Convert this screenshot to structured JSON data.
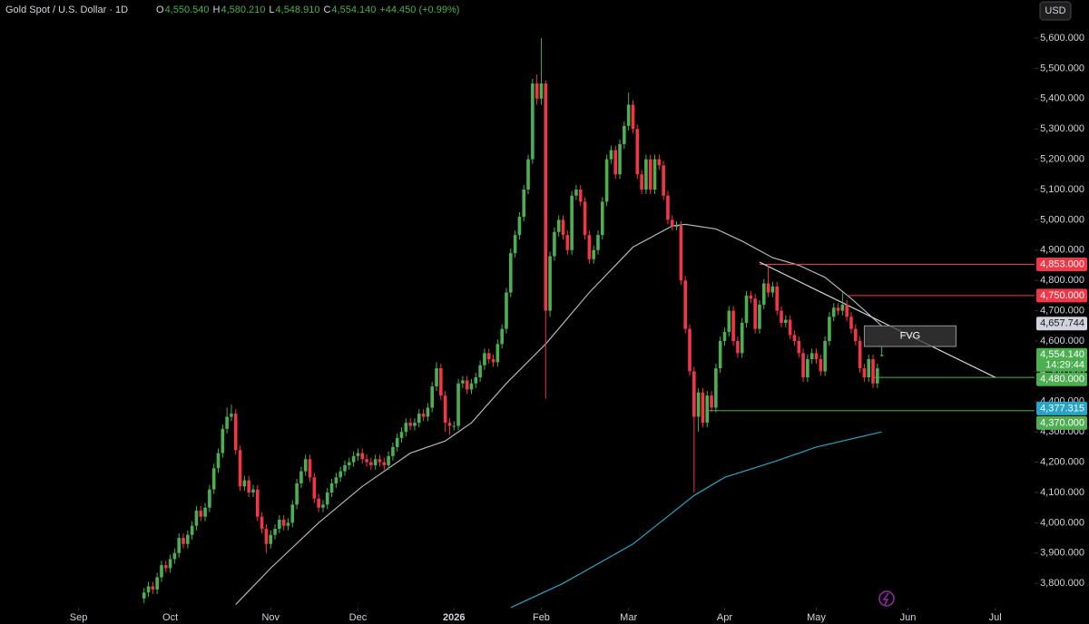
{
  "chart_data": {
    "type": "candlestick",
    "title": "Gold Spot / U.S. Dollar · 1D",
    "ohlc_legend": [
      [
        "O",
        "4,550.540"
      ],
      [
        "H",
        "4,580.210"
      ],
      [
        "L",
        "4,548.910"
      ],
      [
        "C",
        "4,554.140"
      ]
    ],
    "change": "+44.450 (+0.99%)",
    "currency": "USD",
    "up_color": "#4caf50",
    "down_color": "#f23645",
    "xlim": [
      -33,
      204
    ],
    "ylim": [
      3725.7,
      5725.7
    ],
    "xticks": [
      {
        "value": -15,
        "label": "Sep"
      },
      {
        "value": 6,
        "label": "Oct"
      },
      {
        "value": 29,
        "label": "Nov"
      },
      {
        "value": 49,
        "label": "Dec"
      },
      {
        "value": 71,
        "label": "2026"
      },
      {
        "value": 91,
        "label": "Feb"
      },
      {
        "value": 111,
        "label": "Mar"
      },
      {
        "value": 133,
        "label": "Apr"
      },
      {
        "value": 154,
        "label": "May"
      },
      {
        "value": 175,
        "label": "Jun"
      },
      {
        "value": 195,
        "label": "Jul"
      }
    ],
    "yticks": [
      {
        "value": 3800,
        "label": "3,800.000"
      },
      {
        "value": 3900,
        "label": "3,900.000"
      },
      {
        "value": 4000,
        "label": "4,000.000"
      },
      {
        "value": 4100,
        "label": "4,100.000"
      },
      {
        "value": 4200,
        "label": "4,200.000"
      },
      {
        "value": 4300,
        "label": "4,300.000"
      },
      {
        "value": 4400,
        "label": "4,400.000"
      },
      {
        "value": 4500,
        "label": "4,500.000"
      },
      {
        "value": 4600,
        "label": "4,600.000"
      },
      {
        "value": 4700,
        "label": "4,700.000"
      },
      {
        "value": 4800,
        "label": "4,800.000"
      },
      {
        "value": 4900,
        "label": "4,900.000"
      },
      {
        "value": 5000,
        "label": "5,000.000"
      },
      {
        "value": 5100,
        "label": "5,100.000"
      },
      {
        "value": 5200,
        "label": "5,200.000"
      },
      {
        "value": 5300,
        "label": "5,300.000"
      },
      {
        "value": 5400,
        "label": "5,400.000"
      },
      {
        "value": 5500,
        "label": "5,500.000"
      },
      {
        "value": 5600,
        "label": "5,600.000"
      }
    ],
    "open": [
      3750,
      3770,
      3790,
      3780,
      3820,
      3860,
      3850,
      3880,
      3900,
      3950,
      3930,
      3960,
      3990,
      4040,
      4020,
      4050,
      4110,
      4180,
      4230,
      4310,
      4350,
      4360,
      4240,
      4120,
      4140,
      4100,
      4110,
      4020,
      3980,
      3930,
      3960,
      3980,
      4010,
      3990,
      4000,
      4060,
      4130,
      4170,
      4210,
      4150,
      4080,
      4050,
      4060,
      4100,
      4130,
      4150,
      4170,
      4190,
      4200,
      4220,
      4230,
      4210,
      4200,
      4190,
      4210,
      4200,
      4190,
      4220,
      4250,
      4280,
      4300,
      4330,
      4320,
      4330,
      4360,
      4350,
      4380,
      4450,
      4510,
      4420,
      4330,
      4320,
      4320,
      4460,
      4470,
      4440,
      4460,
      4480,
      4520,
      4560,
      4540,
      4530,
      4590,
      4640,
      4760,
      4890,
      4950,
      5010,
      5100,
      5200,
      5450,
      5400,
      5450,
      4700,
      4880,
      4960,
      5000,
      4950,
      4900,
      5080,
      5100,
      5060,
      4950,
      4870,
      4900,
      4950,
      5060,
      5200,
      5230,
      5150,
      5250,
      5310,
      5380,
      5300,
      5150,
      5100,
      5200,
      5100,
      5200,
      5180,
      5080,
      5000,
      4980,
      4980,
      4800,
      4640,
      4500,
      4350,
      4430,
      4330,
      4420,
      4380,
      4510,
      4600,
      4630,
      4700,
      4600,
      4560,
      4660,
      4750,
      4740,
      4640,
      4720,
      4790,
      4760,
      4780,
      4700,
      4660,
      4670,
      4620,
      4600,
      4560,
      4480,
      4540,
      4560,
      4540,
      4500,
      4600,
      4680,
      4710,
      4700,
      4720,
      4680,
      4640,
      4600,
      4510,
      4480,
      4540,
      4460,
      4550.54
    ],
    "high": [
      3785,
      3805,
      3805,
      3835,
      3875,
      3875,
      3895,
      3915,
      3965,
      3965,
      3975,
      4005,
      4055,
      4055,
      4065,
      4125,
      4195,
      4245,
      4325,
      4380,
      4390,
      4375,
      4255,
      4155,
      4155,
      4125,
      4125,
      4035,
      3995,
      3975,
      3995,
      4025,
      4025,
      4015,
      4075,
      4145,
      4185,
      4225,
      4225,
      4165,
      4095,
      4075,
      4115,
      4145,
      4165,
      4185,
      4205,
      4215,
      4235,
      4245,
      4245,
      4225,
      4215,
      4225,
      4225,
      4215,
      4235,
      4265,
      4295,
      4315,
      4345,
      4345,
      4345,
      4375,
      4375,
      4395,
      4465,
      4530,
      4525,
      4435,
      4345,
      4335,
      4475,
      4485,
      4485,
      4475,
      4495,
      4535,
      4575,
      4575,
      4555,
      4605,
      4655,
      4775,
      4905,
      4965,
      5025,
      5115,
      5215,
      5465,
      5480,
      5600,
      5460,
      4895,
      4975,
      5015,
      5015,
      4965,
      5095,
      5115,
      5115,
      5075,
      4965,
      4915,
      4965,
      5075,
      5215,
      5245,
      5245,
      5265,
      5325,
      5420,
      5395,
      5315,
      5165,
      5215,
      5215,
      5215,
      5215,
      5195,
      5095,
      5015,
      4995,
      4995,
      4815,
      4655,
      4515,
      4445,
      4445,
      4435,
      4435,
      4525,
      4615,
      4645,
      4715,
      4715,
      4615,
      4675,
      4765,
      4765,
      4755,
      4735,
      4805,
      4850,
      4795,
      4795,
      4715,
      4685,
      4685,
      4635,
      4615,
      4575,
      4555,
      4575,
      4575,
      4555,
      4615,
      4695,
      4725,
      4725,
      4760,
      4735,
      4695,
      4655,
      4615,
      4525,
      4555,
      4555,
      4525,
      4580.21
    ],
    "low": [
      3735,
      3755,
      3765,
      3765,
      3805,
      3835,
      3835,
      3865,
      3885,
      3915,
      3915,
      3945,
      3975,
      4005,
      4005,
      4035,
      4095,
      4165,
      4215,
      4295,
      4335,
      4225,
      4105,
      4105,
      4085,
      4085,
      4005,
      3965,
      3900,
      3915,
      3945,
      3965,
      3975,
      3975,
      3985,
      4045,
      4115,
      4155,
      4135,
      4065,
      4035,
      4035,
      4045,
      4085,
      4115,
      4135,
      4155,
      4175,
      4185,
      4205,
      4195,
      4185,
      4175,
      4175,
      4185,
      4175,
      4175,
      4205,
      4235,
      4265,
      4285,
      4305,
      4305,
      4315,
      4335,
      4335,
      4365,
      4435,
      4405,
      4300,
      4290,
      4305,
      4305,
      4445,
      4425,
      4425,
      4445,
      4465,
      4505,
      4525,
      4515,
      4515,
      4575,
      4625,
      4745,
      4875,
      4935,
      4995,
      5085,
      5185,
      5380,
      5380,
      4410,
      4680,
      4865,
      4945,
      4935,
      4885,
      4885,
      5065,
      5045,
      4935,
      4855,
      4855,
      4885,
      4935,
      5045,
      5185,
      5135,
      5135,
      5235,
      5295,
      5285,
      5135,
      5085,
      5085,
      5085,
      5085,
      5165,
      5065,
      4985,
      4965,
      4965,
      4785,
      4625,
      4485,
      4100,
      4300,
      4315,
      4315,
      4365,
      4365,
      4495,
      4585,
      4615,
      4585,
      4545,
      4545,
      4645,
      4725,
      4625,
      4625,
      4705,
      4745,
      4745,
      4685,
      4645,
      4645,
      4605,
      4585,
      4545,
      4465,
      4465,
      4525,
      4525,
      4485,
      4485,
      4585,
      4665,
      4685,
      4685,
      4665,
      4625,
      4585,
      4495,
      4465,
      4465,
      4445,
      4445,
      4548.91
    ],
    "close": [
      3770,
      3790,
      3780,
      3820,
      3860,
      3850,
      3880,
      3900,
      3950,
      3930,
      3960,
      3990,
      4040,
      4020,
      4050,
      4110,
      4180,
      4230,
      4310,
      4350,
      4360,
      4240,
      4120,
      4140,
      4100,
      4110,
      4020,
      3980,
      3930,
      3960,
      3980,
      4010,
      3990,
      4000,
      4060,
      4130,
      4170,
      4210,
      4150,
      4080,
      4050,
      4060,
      4100,
      4130,
      4150,
      4170,
      4190,
      4200,
      4220,
      4230,
      4210,
      4200,
      4190,
      4210,
      4200,
      4190,
      4220,
      4250,
      4280,
      4300,
      4330,
      4320,
      4330,
      4360,
      4350,
      4380,
      4450,
      4510,
      4420,
      4330,
      4320,
      4320,
      4460,
      4470,
      4440,
      4460,
      4480,
      4520,
      4560,
      4540,
      4530,
      4590,
      4640,
      4760,
      4890,
      4950,
      5010,
      5100,
      5200,
      5450,
      5400,
      5450,
      4700,
      4880,
      4960,
      5000,
      4950,
      4900,
      5080,
      5100,
      5060,
      4950,
      4870,
      4900,
      4950,
      5060,
      5200,
      5230,
      5150,
      5250,
      5310,
      5380,
      5300,
      5150,
      5100,
      5200,
      5100,
      5200,
      5180,
      5080,
      5000,
      4980,
      4980,
      4800,
      4640,
      4500,
      4350,
      4430,
      4330,
      4420,
      4380,
      4510,
      4600,
      4630,
      4700,
      4600,
      4560,
      4660,
      4750,
      4740,
      4640,
      4720,
      4790,
      4760,
      4780,
      4700,
      4660,
      4670,
      4620,
      4600,
      4560,
      4480,
      4540,
      4560,
      4540,
      4500,
      4600,
      4680,
      4710,
      4700,
      4720,
      4680,
      4640,
      4600,
      4510,
      4480,
      4540,
      4460,
      4510,
      4554.14
    ],
    "lines": [
      {
        "color": "#b2b5be",
        "x": [
          21,
          29,
          40,
          50,
          61,
          69,
          75,
          83,
          92,
          102,
          112,
          121,
          124,
          131,
          137,
          144,
          150,
          156,
          162,
          169
        ],
        "values": [
          3730,
          3850,
          4000,
          4120,
          4230,
          4270,
          4330,
          4460,
          4590,
          4760,
          4910,
          4980,
          4985,
          4970,
          4930,
          4875,
          4850,
          4810,
          4740,
          4650
        ]
      },
      {
        "color": "#26a5c9",
        "x": [
          84,
          96,
          112,
          126,
          133,
          144,
          154,
          169
        ],
        "values": [
          3720,
          3800,
          3930,
          4090,
          4150,
          4200,
          4250,
          4300
        ]
      }
    ],
    "hlines": [
      {
        "value": 4853,
        "start": 141,
        "color": "#f23645"
      },
      {
        "value": 4750,
        "start": 161,
        "color": "#f23645"
      },
      {
        "value": 4480,
        "start": 167,
        "color": "#4caf50"
      },
      {
        "value": 4370,
        "start": 129,
        "color": "#4caf50"
      }
    ],
    "trendline": {
      "x": [
        141,
        195
      ],
      "values": [
        4860,
        4480
      ],
      "color": "#d1d4dc"
    },
    "zone": {
      "label": "FVG",
      "x": [
        165,
        186
      ],
      "values": [
        4582,
        4650
      ]
    },
    "price_labels": [
      {
        "value": 4853,
        "label": "4,853.000",
        "color": "#f23645"
      },
      {
        "value": 4750,
        "label": "4,750.000",
        "color": "#f23645"
      },
      {
        "value": 4657.744,
        "label": "4,657.744",
        "color": "#d1d4dc"
      },
      {
        "value": 4554.14,
        "label": "4,554.140",
        "color": "#4caf50",
        "countdown": "14:29:44"
      },
      {
        "value": 4480,
        "label": "4,480.000",
        "color": "#4caf50"
      },
      {
        "value": 4377.315,
        "label": "4,377.315",
        "color": "#26a5c9"
      },
      {
        "value": 4370,
        "label": "4,370.000",
        "color": "#4caf50"
      }
    ]
  }
}
